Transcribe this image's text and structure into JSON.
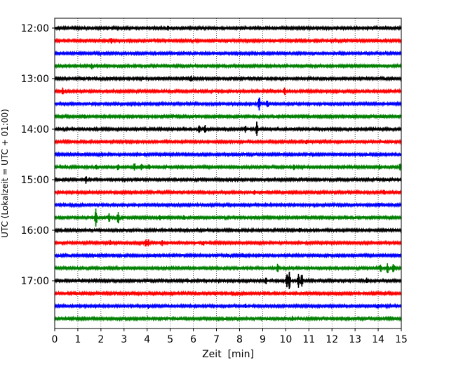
{
  "chart_data": {
    "type": "line",
    "title": "",
    "xlabel": "Zeit  [min]",
    "ylabel": "UTC (Lokalzeit = UTC + 01:00)",
    "xlim": [
      0,
      15
    ],
    "x_ticks": [
      0,
      1,
      2,
      3,
      4,
      5,
      6,
      7,
      8,
      9,
      10,
      11,
      12,
      13,
      14,
      15
    ],
    "y_tick_labels": [
      "12:00",
      "13:00",
      "14:00",
      "15:00",
      "16:00",
      "17:00"
    ],
    "grid": "vertical dotted at every minute",
    "trace_colors": [
      "#000000",
      "#ff0000",
      "#0000ff",
      "#008000"
    ],
    "series": [
      {
        "start": "12:00",
        "color": "#000000",
        "events": [
          [
            4.9,
            0.35
          ]
        ]
      },
      {
        "start": "12:15",
        "color": "#ff0000",
        "events": [
          [
            2.45,
            0.4
          ]
        ]
      },
      {
        "start": "12:30",
        "color": "#0000ff",
        "events": []
      },
      {
        "start": "12:45",
        "color": "#008000",
        "events": [
          [
            1.6,
            0.35
          ]
        ]
      },
      {
        "start": "13:00",
        "color": "#000000",
        "events": [
          [
            5.9,
            0.35
          ]
        ]
      },
      {
        "start": "13:15",
        "color": "#ff0000",
        "events": [
          [
            0.35,
            0.45
          ],
          [
            9.95,
            0.45
          ]
        ]
      },
      {
        "start": "13:30",
        "color": "#0000ff",
        "events": [
          [
            8.85,
            0.9
          ],
          [
            9.2,
            0.45
          ]
        ]
      },
      {
        "start": "13:45",
        "color": "#008000",
        "events": [
          [
            1.3,
            0.3
          ]
        ]
      },
      {
        "start": "14:00",
        "color": "#000000",
        "events": [
          [
            6.25,
            0.55
          ],
          [
            6.5,
            0.5
          ],
          [
            8.25,
            0.45
          ],
          [
            8.75,
            1.0
          ]
        ]
      },
      {
        "start": "14:15",
        "color": "#ff0000",
        "events": [
          [
            10.9,
            0.3
          ]
        ]
      },
      {
        "start": "14:30",
        "color": "#0000ff",
        "events": []
      },
      {
        "start": "14:45",
        "color": "#008000",
        "events": [
          [
            1.8,
            0.35
          ],
          [
            2.75,
            0.4
          ],
          [
            3.45,
            0.5
          ],
          [
            3.75,
            0.45
          ],
          [
            4.1,
            0.35
          ],
          [
            10.35,
            0.35
          ],
          [
            14.05,
            0.3
          ],
          [
            14.95,
            0.5
          ]
        ]
      },
      {
        "start": "15:00",
        "color": "#000000",
        "events": [
          [
            1.35,
            0.45
          ]
        ]
      },
      {
        "start": "15:15",
        "color": "#ff0000",
        "events": [
          [
            8.65,
            0.3
          ],
          [
            14.25,
            0.3
          ]
        ]
      },
      {
        "start": "15:30",
        "color": "#0000ff",
        "events": [
          [
            14.05,
            0.25
          ]
        ]
      },
      {
        "start": "15:45",
        "color": "#008000",
        "events": [
          [
            1.78,
            1.3
          ],
          [
            2.35,
            0.6
          ],
          [
            2.75,
            0.8
          ],
          [
            4.55,
            0.35
          ],
          [
            5.6,
            0.3
          ]
        ]
      },
      {
        "start": "16:00",
        "color": "#000000",
        "events": [
          [
            10.6,
            0.3
          ]
        ]
      },
      {
        "start": "16:15",
        "color": "#ff0000",
        "events": [
          [
            2.4,
            0.3
          ],
          [
            3.95,
            0.5
          ],
          [
            4.05,
            0.5
          ],
          [
            4.65,
            0.4
          ],
          [
            6.45,
            0.25
          ]
        ]
      },
      {
        "start": "16:30",
        "color": "#0000ff",
        "events": [
          [
            8.15,
            0.25
          ]
        ]
      },
      {
        "start": "16:45",
        "color": "#008000",
        "events": [
          [
            9.65,
            0.5
          ],
          [
            14.1,
            0.5
          ],
          [
            14.4,
            0.7
          ],
          [
            14.65,
            0.6
          ]
        ]
      },
      {
        "start": "17:00",
        "color": "#000000",
        "events": [
          [
            9.15,
            0.45
          ],
          [
            10.05,
            0.9
          ],
          [
            10.15,
            1.2
          ],
          [
            10.55,
            1.0
          ],
          [
            10.7,
            0.85
          ],
          [
            13.5,
            0.3
          ]
        ]
      },
      {
        "start": "17:15",
        "color": "#ff0000",
        "events": []
      },
      {
        "start": "17:30",
        "color": "#0000ff",
        "events": [
          [
            4.05,
            0.25
          ],
          [
            8.25,
            0.3
          ],
          [
            14.0,
            0.3
          ]
        ]
      },
      {
        "start": "17:45",
        "color": "#008000",
        "events": [
          [
            10.3,
            0.25
          ]
        ]
      }
    ]
  }
}
